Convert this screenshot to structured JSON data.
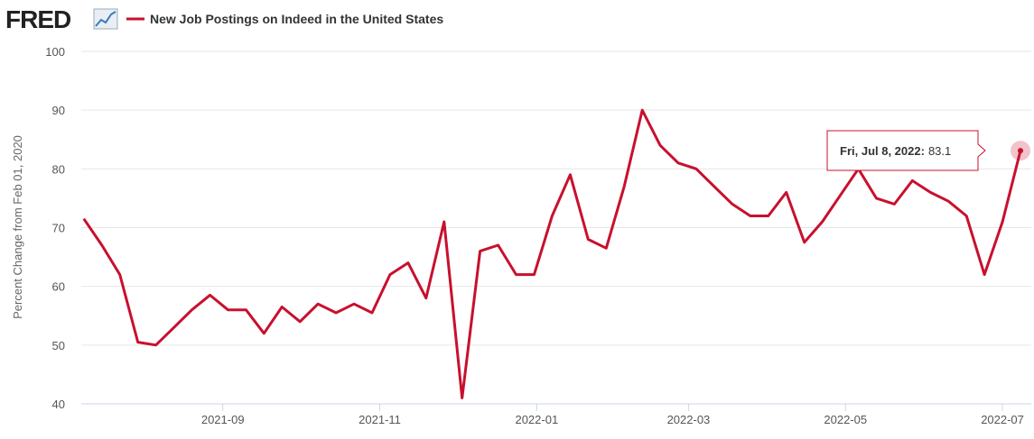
{
  "header": {
    "logo": "FRED"
  },
  "chart_data": {
    "type": "line",
    "y_label": "Percent Change from Feb 01, 2020",
    "x": [
      "2021-07-09",
      "2021-07-16",
      "2021-07-23",
      "2021-07-30",
      "2021-08-06",
      "2021-08-13",
      "2021-08-20",
      "2021-08-27",
      "2021-09-03",
      "2021-09-10",
      "2021-09-17",
      "2021-09-24",
      "2021-10-01",
      "2021-10-08",
      "2021-10-15",
      "2021-10-22",
      "2021-10-29",
      "2021-11-05",
      "2021-11-12",
      "2021-11-19",
      "2021-11-26",
      "2021-12-03",
      "2021-12-10",
      "2021-12-17",
      "2021-12-24",
      "2021-12-31",
      "2022-01-07",
      "2022-01-14",
      "2022-01-21",
      "2022-01-28",
      "2022-02-04",
      "2022-02-11",
      "2022-02-18",
      "2022-02-25",
      "2022-03-04",
      "2022-03-11",
      "2022-03-18",
      "2022-03-25",
      "2022-04-01",
      "2022-04-08",
      "2022-04-15",
      "2022-04-22",
      "2022-04-29",
      "2022-05-06",
      "2022-05-13",
      "2022-05-20",
      "2022-05-27",
      "2022-06-03",
      "2022-06-10",
      "2022-06-17",
      "2022-06-24",
      "2022-07-01",
      "2022-07-08"
    ],
    "series": [
      {
        "name": "New Job Postings on Indeed in the United States",
        "color": "#c8102e",
        "values": [
          71.5,
          67,
          62,
          50.5,
          50,
          53,
          56,
          58.5,
          56,
          56,
          52,
          56.5,
          54,
          57,
          55.5,
          57,
          55.5,
          62,
          64,
          58,
          71,
          41,
          66,
          67,
          62,
          62,
          72,
          79,
          68,
          66.5,
          77,
          90,
          84,
          81,
          80,
          77,
          74,
          72,
          72,
          76,
          67.5,
          71,
          75.5,
          80,
          75,
          74,
          78,
          76,
          74.5,
          72,
          62,
          71,
          83.1
        ]
      }
    ],
    "xlim": [
      "2021-07-08",
      "2022-07-08"
    ],
    "xticks": [
      "2021-09",
      "2021-11",
      "2022-01",
      "2022-03",
      "2022-05",
      "2022-07"
    ],
    "ylim": [
      40,
      100
    ],
    "yticks": [
      40,
      50,
      60,
      70,
      80,
      90,
      100
    ],
    "grid": true,
    "tooltip": {
      "label": "Fri, Jul 8, 2022:"
    }
  }
}
